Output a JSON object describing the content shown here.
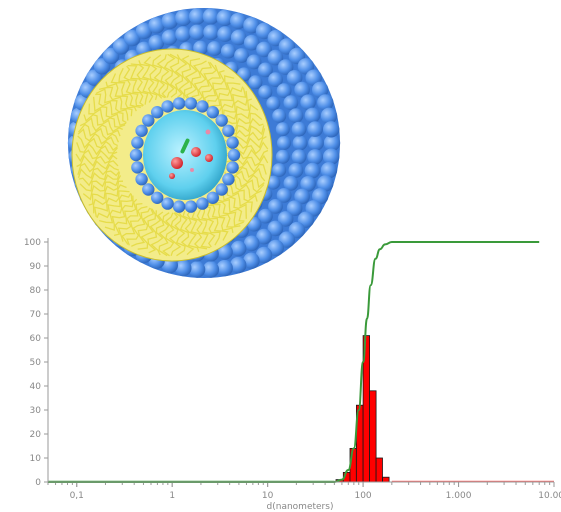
{
  "illustration": {
    "name": "liposome cross-section",
    "colors": {
      "headgroup": "#4f8fe8",
      "headgroup_highlight": "#a9ceff",
      "lipid_tail": "#e6dc4a",
      "aqueous_core": "#5fd0ee",
      "payload_red": "#e8343a",
      "payload_green": "#2bb24a",
      "payload_pink": "#e88aa8"
    }
  },
  "chart_data": {
    "type": "bar",
    "scale": "log",
    "xlabel": "d(nanometers)",
    "ylabel": "",
    "xlim": [
      0.05,
      10000
    ],
    "ylim": [
      0,
      100
    ],
    "x_ticks": [
      {
        "value": 0.1,
        "label": "0,1"
      },
      {
        "value": 1,
        "label": "1"
      },
      {
        "value": 10,
        "label": "10"
      },
      {
        "value": 100,
        "label": "100"
      },
      {
        "value": 1000,
        "label": "1.000"
      },
      {
        "value": 10000,
        "label": "10.000"
      }
    ],
    "y_ticks": [
      0,
      10,
      20,
      30,
      40,
      50,
      60,
      70,
      80,
      90,
      100
    ],
    "histogram": {
      "bins": [
        {
          "x0": 52,
          "x1": 62,
          "value": 1
        },
        {
          "x0": 62,
          "x1": 73,
          "value": 4
        },
        {
          "x0": 73,
          "x1": 85,
          "value": 14
        },
        {
          "x0": 85,
          "x1": 100,
          "value": 32
        },
        {
          "x0": 100,
          "x1": 117,
          "value": 61
        },
        {
          "x0": 117,
          "x1": 137,
          "value": 38
        },
        {
          "x0": 137,
          "x1": 160,
          "value": 10
        },
        {
          "x0": 160,
          "x1": 187,
          "value": 2
        }
      ]
    },
    "cumulative": {
      "x": [
        0.05,
        50,
        60,
        70,
        80,
        90,
        100,
        110,
        120,
        135,
        150,
        170,
        200,
        7000
      ],
      "y": [
        0,
        0,
        1,
        5,
        14,
        30,
        50,
        68,
        82,
        93,
        97,
        99,
        100,
        100
      ]
    },
    "baseline": {
      "x": [
        0.05,
        10000
      ],
      "y": [
        0,
        0
      ]
    },
    "colors": {
      "bars": "#ff0000",
      "bar_edge": "#1a1a1a",
      "cumulative": "#3a9a3a",
      "baseline_left": "#3a9a3a",
      "baseline_right": "#ff6b6b",
      "axis": "#9a9a9a",
      "tick_label": "#888888"
    },
    "grid": false,
    "legend": "none"
  }
}
